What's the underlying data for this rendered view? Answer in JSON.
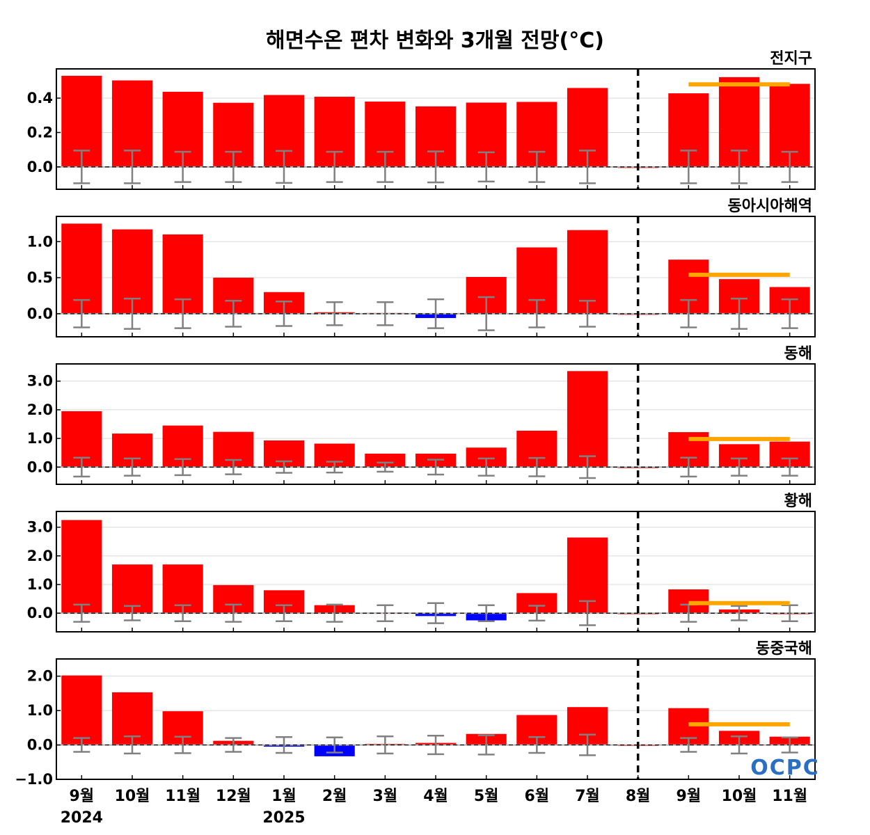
{
  "chart_data": {
    "type": "bar",
    "title": "해면수온 편차 변화와 3개월 전망(°C)",
    "categories": [
      "9월",
      "10월",
      "11월",
      "12월",
      "1월",
      "2월",
      "3월",
      "4월",
      "5월",
      "6월",
      "7월",
      "8월",
      "9월",
      "10월",
      "11월"
    ],
    "year_labels": [
      {
        "index": 0,
        "label": "2024"
      },
      {
        "index": 4,
        "label": "2025"
      }
    ],
    "forecast_divider_after_index": 11,
    "colors": {
      "positive": "#ff0000",
      "negative": "#0000ff",
      "forecast_line": "#ffa500",
      "error_bar": "#808080",
      "zero_line": "#000000"
    },
    "logo_text": "OCPC",
    "panels": [
      {
        "name": "전지구",
        "ylim": [
          -0.13,
          0.57
        ],
        "yticks": [
          0.0,
          0.2,
          0.4
        ],
        "ytick_labels": [
          "0.0",
          "0.2",
          "0.4"
        ],
        "values": [
          0.53,
          0.503,
          0.437,
          0.373,
          0.418,
          0.408,
          0.38,
          0.352,
          0.374,
          0.378,
          0.459,
          0.0,
          0.428,
          0.522,
          0.483
        ],
        "error": [
          0.095,
          0.095,
          0.088,
          0.088,
          0.093,
          0.088,
          0.088,
          0.09,
          0.085,
          0.088,
          0.095,
          null,
          0.095,
          0.095,
          0.088
        ],
        "forecast_line": 0.48
      },
      {
        "name": "동아시아해역",
        "ylim": [
          -0.32,
          1.35
        ],
        "yticks": [
          0.0,
          0.5,
          1.0
        ],
        "ytick_labels": [
          "0.0",
          "0.5",
          "1.0"
        ],
        "values": [
          1.25,
          1.17,
          1.1,
          0.5,
          0.3,
          0.02,
          0.01,
          -0.06,
          0.51,
          0.92,
          1.16,
          0.0,
          0.75,
          0.48,
          0.37
        ],
        "error": [
          0.19,
          0.21,
          0.2,
          0.18,
          0.17,
          0.16,
          0.16,
          0.2,
          0.23,
          0.19,
          0.18,
          null,
          0.19,
          0.21,
          0.2
        ],
        "forecast_line": 0.54
      },
      {
        "name": "동해",
        "ylim": [
          -0.6,
          3.6
        ],
        "yticks": [
          0.0,
          1.0,
          2.0,
          3.0
        ],
        "ytick_labels": [
          "0.0",
          "1.0",
          "2.0",
          "3.0"
        ],
        "values": [
          1.95,
          1.17,
          1.45,
          1.23,
          0.93,
          0.82,
          0.47,
          0.47,
          0.68,
          1.27,
          3.35,
          0.0,
          1.22,
          0.8,
          0.89
        ],
        "error": [
          0.33,
          0.3,
          0.28,
          0.25,
          0.2,
          0.19,
          0.16,
          0.26,
          0.3,
          0.32,
          0.38,
          null,
          0.33,
          0.3,
          0.3
        ],
        "forecast_line": 0.98
      },
      {
        "name": "황해",
        "ylim": [
          -0.65,
          3.55
        ],
        "yticks": [
          0.0,
          1.0,
          2.0,
          3.0
        ],
        "ytick_labels": [
          "0.0",
          "1.0",
          "2.0",
          "3.0"
        ],
        "values": [
          3.25,
          1.7,
          1.7,
          0.98,
          0.8,
          0.28,
          0.02,
          -0.1,
          -0.25,
          0.7,
          2.64,
          0.0,
          0.83,
          0.13,
          0.0
        ],
        "error": [
          0.3,
          0.25,
          0.28,
          0.3,
          0.28,
          0.3,
          0.28,
          0.35,
          0.28,
          0.26,
          0.42,
          null,
          0.3,
          0.25,
          0.28
        ],
        "forecast_line": 0.35
      },
      {
        "name": "동중국해",
        "ylim": [
          -1.0,
          2.5
        ],
        "yticks": [
          -1.0,
          0.0,
          1.0,
          2.0
        ],
        "ytick_labels": [
          "−1.0",
          "0.0",
          "1.0",
          "2.0"
        ],
        "values": [
          2.02,
          1.53,
          0.98,
          0.12,
          -0.05,
          -0.33,
          0.03,
          0.06,
          0.32,
          0.87,
          1.1,
          0.0,
          1.07,
          0.41,
          0.24
        ],
        "error": [
          0.2,
          0.25,
          0.24,
          0.2,
          0.23,
          0.22,
          0.25,
          0.27,
          0.28,
          0.23,
          0.3,
          null,
          0.2,
          0.25,
          0.22
        ],
        "forecast_line": 0.6
      }
    ]
  }
}
